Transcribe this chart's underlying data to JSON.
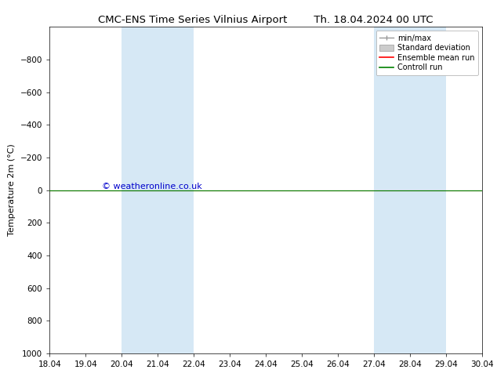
{
  "title_left": "CMC-ENS Time Series Vilnius Airport",
  "title_right": "Th. 18.04.2024 00 UTC",
  "ylabel": "Temperature 2m (°C)",
  "xlim": [
    0,
    12
  ],
  "ylim_bottom": 1000,
  "ylim_top": -1000,
  "yticks": [
    -800,
    -600,
    -400,
    -200,
    0,
    200,
    400,
    600,
    800,
    1000
  ],
  "xtick_labels": [
    "18.04",
    "19.04",
    "20.04",
    "21.04",
    "22.04",
    "23.04",
    "24.04",
    "25.04",
    "26.04",
    "27.04",
    "28.04",
    "29.04",
    "30.04"
  ],
  "background_color": "#ffffff",
  "plot_bg_color": "#ffffff",
  "shaded_bands": [
    {
      "xmin": 2,
      "xmax": 4
    },
    {
      "xmin": 9,
      "xmax": 11
    }
  ],
  "shaded_color": "#d6e8f5",
  "control_run_y": 0,
  "ensemble_mean_y": 0,
  "control_run_color": "#008000",
  "ensemble_mean_color": "#ff0000",
  "minmax_color": "#999999",
  "stddev_color": "#cccccc",
  "watermark": "© weatheronline.co.uk",
  "watermark_color": "#0000cc",
  "legend_labels": [
    "min/max",
    "Standard deviation",
    "Ensemble mean run",
    "Controll run"
  ],
  "legend_colors": [
    "#999999",
    "#cccccc",
    "#ff0000",
    "#008000"
  ],
  "title_fontsize": 9.5,
  "axis_fontsize": 8,
  "tick_fontsize": 7.5,
  "legend_fontsize": 7,
  "watermark_fontsize": 8
}
